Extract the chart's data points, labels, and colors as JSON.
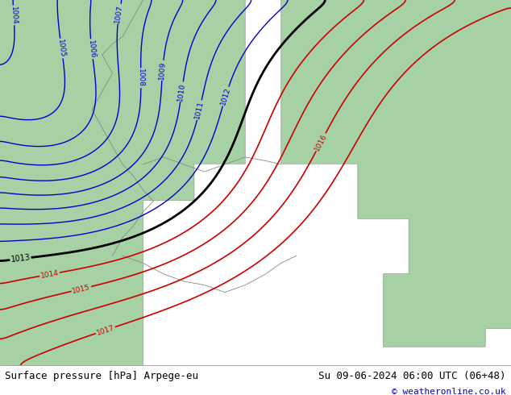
{
  "title_left": "Surface pressure [hPa] Arpege-eu",
  "title_right": "Su 09-06-2024 06:00 UTC (06+48)",
  "copyright": "© weatheronline.co.uk",
  "land_color": [
    0.65,
    0.82,
    0.65,
    1.0
  ],
  "sea_color": [
    0.86,
    0.89,
    0.89,
    1.0
  ],
  "blue_color": "#0000cc",
  "red_color": "#cc0000",
  "black_color": "#000000",
  "gray_color": "#888888",
  "footer_bg": "#c8d8c8",
  "font_size_footer": 9,
  "font_size_copyright": 8,
  "figsize": [
    6.34,
    4.9
  ],
  "dpi": 100
}
